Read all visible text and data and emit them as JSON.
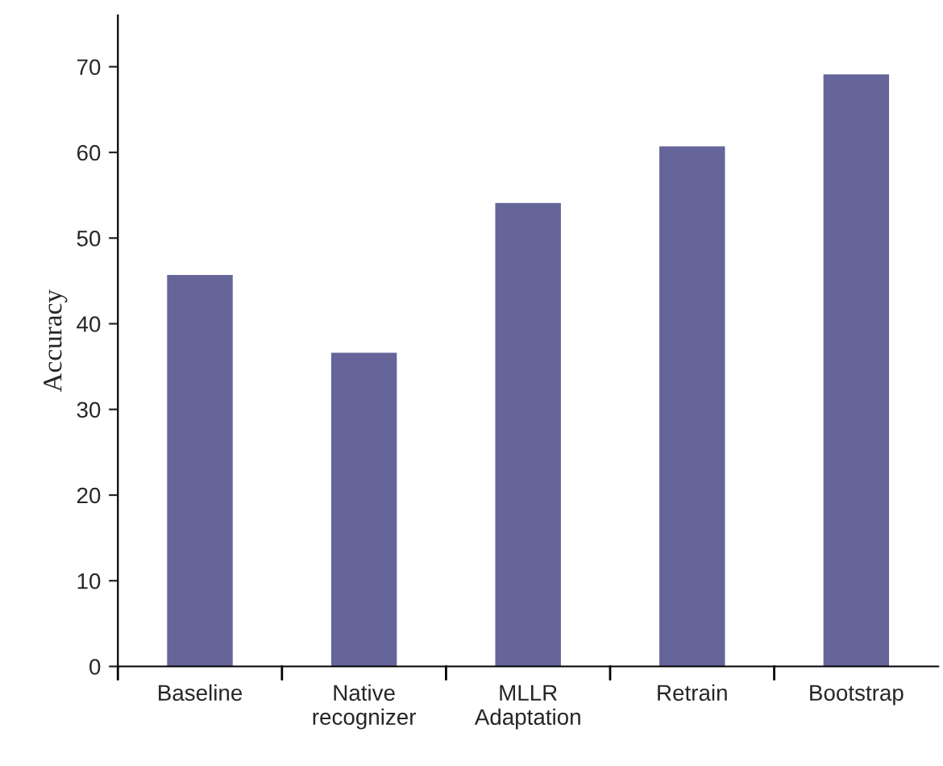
{
  "chart_data": {
    "type": "bar",
    "ylabel": "Accuracy",
    "categories": [
      "Baseline",
      "Native\nrecognizer",
      "MLLR\nAdaptation",
      "Retrain",
      "Bootstrap"
    ],
    "values": [
      45.7,
      36.6,
      54.1,
      60.7,
      69.1
    ],
    "color": "#65659a",
    "ylim": [
      0,
      76
    ],
    "yticks": [
      0,
      10,
      20,
      30,
      40,
      50,
      60,
      70
    ],
    "grid": false,
    "legend": false
  }
}
